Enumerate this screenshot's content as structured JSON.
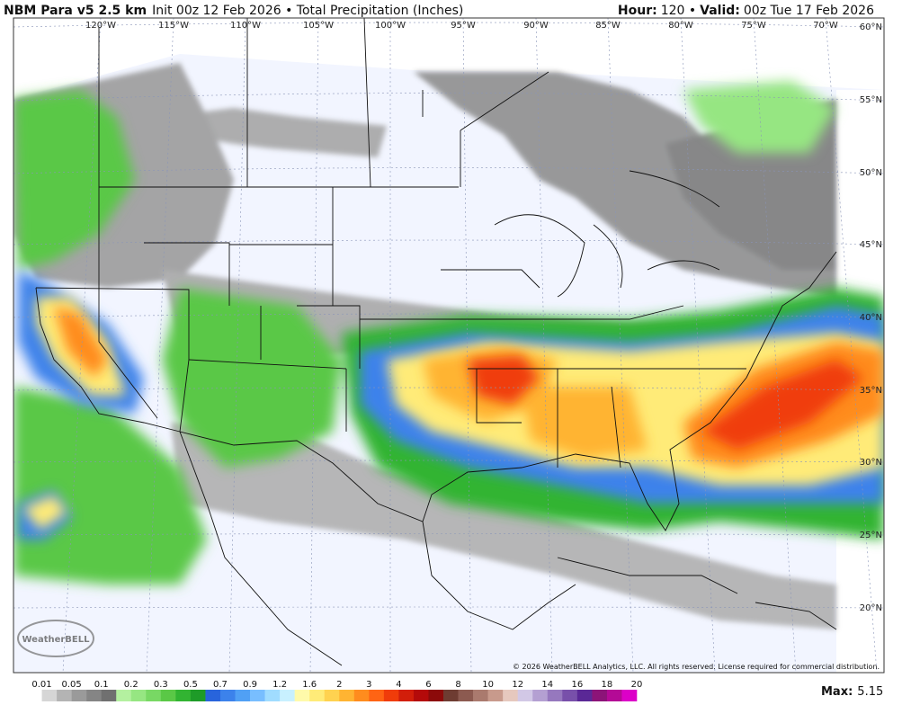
{
  "header": {
    "model": "NBM Para v5 2.5 km",
    "init_product": "Init 00z 12 Feb 2026 • Total Precipitation (Inches)",
    "hour_label": "Hour:",
    "hour_text": "120 •",
    "valid_label": "Valid:",
    "valid_text": "00z Tue 17 Feb 2026"
  },
  "map": {
    "lon_labels": [
      "120°W",
      "115°W",
      "110°W",
      "105°W",
      "100°W",
      "95°W",
      "90°W",
      "85°W",
      "80°W",
      "75°W",
      "70°W"
    ],
    "lat_labels": [
      "60°N",
      "55°N",
      "50°N",
      "45°N",
      "40°N",
      "35°N",
      "30°N",
      "25°N",
      "20°N"
    ],
    "logo": "WeatherBELL",
    "copyright": "© 2026 WeatherBELL Analytics, LLC. All rights reserved. License required for commercial distribution."
  },
  "colorbar": {
    "labels": [
      "0.01",
      "0.05",
      "0.1",
      "0.2",
      "0.3",
      "0.5",
      "0.7",
      "0.9",
      "1.2",
      "1.6",
      "2",
      "3",
      "4",
      "6",
      "8",
      "10",
      "12",
      "14",
      "16",
      "18",
      "20"
    ],
    "colors": [
      "#ffffff",
      "#d6d6d6",
      "#b4b4b4",
      "#9a9a9a",
      "#858585",
      "#707070",
      "#b4f0a0",
      "#96e682",
      "#78d864",
      "#5ac846",
      "#32b432",
      "#1e9b28",
      "#2864dc",
      "#3c82eb",
      "#50a0f5",
      "#78beff",
      "#a0dcff",
      "#c8f0ff",
      "#fffaaa",
      "#ffeb78",
      "#ffd250",
      "#ffb432",
      "#ff8c1e",
      "#ff6414",
      "#f03c0a",
      "#d21e0a",
      "#b40a0a",
      "#8c0a0a",
      "#6e3c32",
      "#8c5a50",
      "#aa7a6e",
      "#c89a8c",
      "#e6c8be",
      "#d2c8e6",
      "#b4a0d2",
      "#9678be",
      "#7850aa",
      "#5a2896",
      "#8c1478",
      "#b40a96",
      "#dc00c8"
    ]
  },
  "max": {
    "label": "Max:",
    "value": "5.15"
  }
}
